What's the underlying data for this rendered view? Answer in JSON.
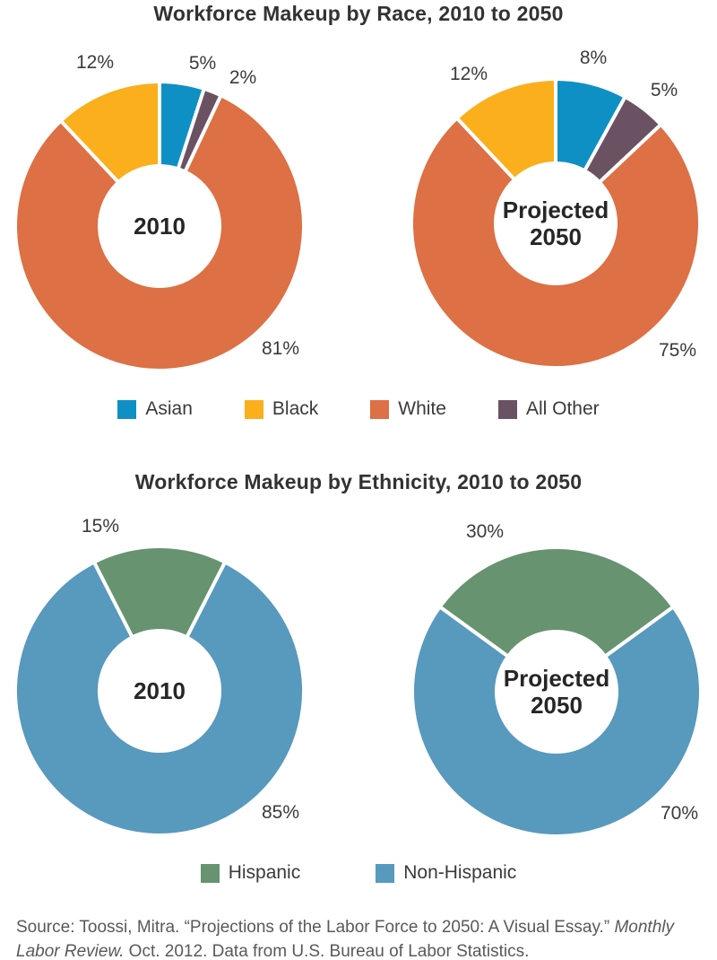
{
  "race_section": {
    "title": "Workforce Makeup by Race, 2010 to 2050",
    "legend": [
      {
        "label": "Asian",
        "color": "#0E90C4"
      },
      {
        "label": "Black",
        "color": "#FBAF1C"
      },
      {
        "label": "White",
        "color": "#DD7044"
      },
      {
        "label": "All Other",
        "color": "#6A5263"
      }
    ]
  },
  "ethnicity_section": {
    "title": "Workforce Makeup by Ethnicity, 2010 to 2050",
    "legend": [
      {
        "label": "Hispanic",
        "color": "#679370"
      },
      {
        "label": "Non-Hispanic",
        "color": "#5899BE"
      }
    ]
  },
  "source": {
    "line1_normal": "Source: Toossi, Mitra. “Projections of the Labor Force to 2050: A Visual Essay.” ",
    "line1_italic": "Monthly",
    "line2_italic": "Labor Review.",
    "line2_normal": " Oct. 2012. Data from U.S. Bureau of Labor Statistics."
  },
  "chart_data": [
    {
      "type": "pie",
      "variant": "donut",
      "group": "race",
      "center_label_lines": [
        "2010"
      ],
      "start_angle_deg": 0,
      "legend_position": "bottom",
      "slices": [
        {
          "name": "Asian",
          "value": 5,
          "display": "5%",
          "color": "#0E90C4"
        },
        {
          "name": "All Other",
          "value": 2,
          "display": "2%",
          "color": "#6A5263"
        },
        {
          "name": "White",
          "value": 81,
          "display": "81%",
          "color": "#DD7044"
        },
        {
          "name": "Black",
          "value": 12,
          "display": "12%",
          "color": "#FBAF1C"
        }
      ]
    },
    {
      "type": "pie",
      "variant": "donut",
      "group": "race",
      "center_label_lines": [
        "Projected",
        "2050"
      ],
      "start_angle_deg": 0,
      "legend_position": "bottom",
      "slices": [
        {
          "name": "Asian",
          "value": 8,
          "display": "8%",
          "color": "#0E90C4"
        },
        {
          "name": "All Other",
          "value": 5,
          "display": "5%",
          "color": "#6A5263"
        },
        {
          "name": "White",
          "value": 75,
          "display": "75%",
          "color": "#DD7044"
        },
        {
          "name": "Black",
          "value": 12,
          "display": "12%",
          "color": "#FBAF1C"
        }
      ]
    },
    {
      "type": "pie",
      "variant": "donut",
      "group": "ethnicity",
      "center_label_lines": [
        "2010"
      ],
      "start_angle_deg": -27,
      "legend_position": "bottom",
      "slices": [
        {
          "name": "Hispanic",
          "value": 15,
          "display": "15%",
          "color": "#679370"
        },
        {
          "name": "Non-Hispanic",
          "value": 85,
          "display": "85%",
          "color": "#5899BE"
        }
      ]
    },
    {
      "type": "pie",
      "variant": "donut",
      "group": "ethnicity",
      "center_label_lines": [
        "Projected",
        "2050"
      ],
      "start_angle_deg": -54,
      "legend_position": "bottom",
      "slices": [
        {
          "name": "Hispanic",
          "value": 30,
          "display": "30%",
          "color": "#679370"
        },
        {
          "name": "Non-Hispanic",
          "value": 70,
          "display": "70%",
          "color": "#5899BE"
        }
      ]
    }
  ]
}
